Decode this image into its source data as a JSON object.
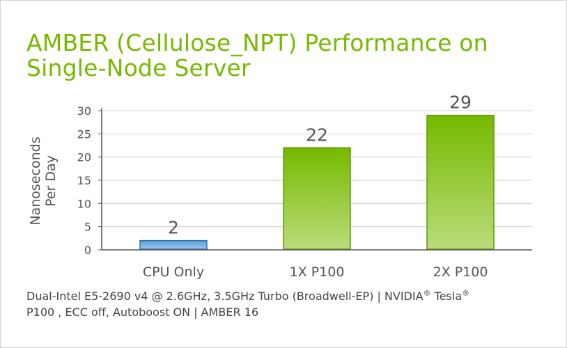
{
  "title": "AMBER (Cellulose_NPT) Performance on Single-Node Server",
  "footnote": {
    "line1_a": "Dual-Intel E5-2690 v4 @ 2.6GHz,  3.5GHz Turbo (Broadwell-EP)  |  NVIDIA",
    "line1_b": " Tesla",
    "reg_mark": "®",
    "line2": "P100 , ECC off, Autoboost ON  |  AMBER 16"
  },
  "chart_data": {
    "type": "bar",
    "title": "AMBER (Cellulose_NPT) Performance on Single-Node Server",
    "xlabel": "",
    "ylabel": "Nanoseconds Per Day",
    "ylabel_lines": [
      "Nanoseconds",
      "Per Day"
    ],
    "categories": [
      "CPU Only",
      "1X P100",
      "2X P100"
    ],
    "values": [
      2,
      22,
      29
    ],
    "data_labels": [
      "2",
      "22",
      "29"
    ],
    "ylim": [
      0,
      30
    ],
    "yticks": [
      0,
      5,
      10,
      15,
      20,
      25,
      30
    ],
    "grid": true,
    "legend": "none",
    "colors": {
      "cpu_fill_top": "#5b9bd5",
      "cpu_fill_bottom": "#9cc8ec",
      "cpu_stroke": "#2e75b6",
      "gpu_fill_top": "#76b900",
      "gpu_fill_bottom": "#b9dc7a",
      "gpu_stroke": "#5e9a00",
      "grid": "#cfcfcf",
      "axis": "#555555",
      "text": "#555555",
      "title": "#76b900"
    }
  }
}
